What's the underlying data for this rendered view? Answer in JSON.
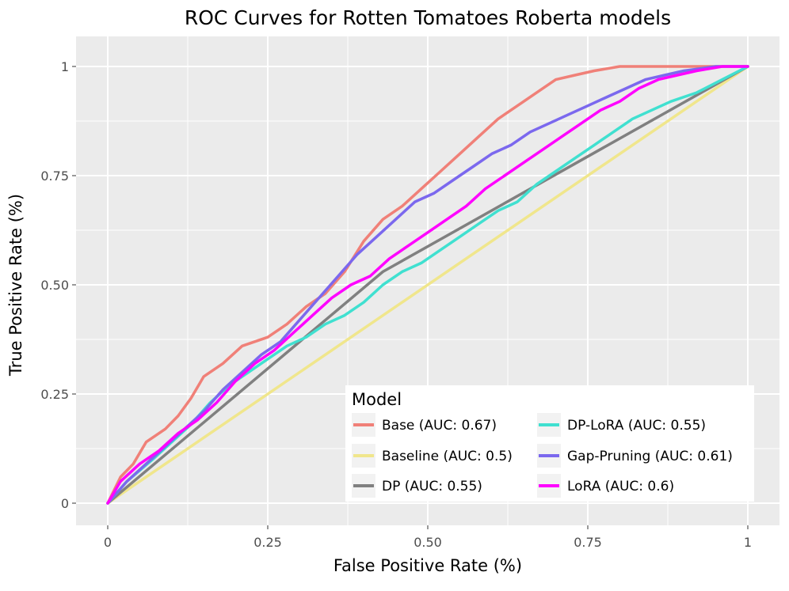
{
  "chart_data": {
    "type": "line",
    "title": "ROC Curves for Rotten Tomatoes Roberta models",
    "xlabel": "False Positive Rate (%)",
    "ylabel": "True Positive Rate (%)",
    "xlim": [
      0,
      1
    ],
    "ylim": [
      0,
      1
    ],
    "x_ticks": [
      "0",
      "0.25",
      "0.50",
      "0.75",
      "1"
    ],
    "y_ticks": [
      "0",
      "0.25",
      "0.50",
      "0.75",
      "1"
    ],
    "grid": true,
    "legend": {
      "title": "Model",
      "placement": "bottom-right"
    },
    "series": [
      {
        "name": "Base (AUC: 0.67)",
        "color": "#f08078",
        "points": [
          [
            0,
            0
          ],
          [
            0.02,
            0.06
          ],
          [
            0.04,
            0.09
          ],
          [
            0.06,
            0.14
          ],
          [
            0.09,
            0.17
          ],
          [
            0.11,
            0.2
          ],
          [
            0.13,
            0.24
          ],
          [
            0.15,
            0.29
          ],
          [
            0.18,
            0.32
          ],
          [
            0.21,
            0.36
          ],
          [
            0.25,
            0.38
          ],
          [
            0.28,
            0.41
          ],
          [
            0.31,
            0.45
          ],
          [
            0.34,
            0.48
          ],
          [
            0.37,
            0.53
          ],
          [
            0.4,
            0.6
          ],
          [
            0.43,
            0.65
          ],
          [
            0.46,
            0.68
          ],
          [
            0.49,
            0.72
          ],
          [
            0.52,
            0.76
          ],
          [
            0.55,
            0.8
          ],
          [
            0.58,
            0.84
          ],
          [
            0.61,
            0.88
          ],
          [
            0.64,
            0.91
          ],
          [
            0.67,
            0.94
          ],
          [
            0.7,
            0.97
          ],
          [
            0.73,
            0.98
          ],
          [
            0.76,
            0.99
          ],
          [
            0.8,
            1.0
          ],
          [
            1.0,
            1.0
          ]
        ]
      },
      {
        "name": "Baseline (AUC: 0.5)",
        "color": "#f0e68c",
        "points": [
          [
            0,
            0
          ],
          [
            1,
            1
          ]
        ]
      },
      {
        "name": "DP (AUC: 0.55)",
        "color": "#808080",
        "points": [
          [
            0,
            0
          ],
          [
            0.43,
            0.53
          ],
          [
            1,
            1
          ]
        ]
      },
      {
        "name": "DP-LoRA (AUC: 0.55)",
        "color": "#40e0d0",
        "points": [
          [
            0,
            0
          ],
          [
            0.03,
            0.05
          ],
          [
            0.07,
            0.1
          ],
          [
            0.1,
            0.14
          ],
          [
            0.13,
            0.18
          ],
          [
            0.16,
            0.23
          ],
          [
            0.19,
            0.27
          ],
          [
            0.22,
            0.3
          ],
          [
            0.25,
            0.33
          ],
          [
            0.28,
            0.36
          ],
          [
            0.31,
            0.38
          ],
          [
            0.34,
            0.41
          ],
          [
            0.37,
            0.43
          ],
          [
            0.4,
            0.46
          ],
          [
            0.43,
            0.5
          ],
          [
            0.46,
            0.53
          ],
          [
            0.49,
            0.55
          ],
          [
            0.52,
            0.58
          ],
          [
            0.55,
            0.61
          ],
          [
            0.58,
            0.64
          ],
          [
            0.61,
            0.67
          ],
          [
            0.64,
            0.69
          ],
          [
            0.67,
            0.73
          ],
          [
            0.7,
            0.76
          ],
          [
            0.73,
            0.79
          ],
          [
            0.76,
            0.82
          ],
          [
            0.79,
            0.85
          ],
          [
            0.82,
            0.88
          ],
          [
            0.85,
            0.9
          ],
          [
            0.88,
            0.92
          ],
          [
            0.92,
            0.94
          ],
          [
            0.96,
            0.97
          ],
          [
            1.0,
            1.0
          ]
        ]
      },
      {
        "name": "Gap-Pruning (AUC: 0.61)",
        "color": "#7b68ee",
        "points": [
          [
            0,
            0
          ],
          [
            0.03,
            0.05
          ],
          [
            0.06,
            0.09
          ],
          [
            0.09,
            0.13
          ],
          [
            0.12,
            0.17
          ],
          [
            0.15,
            0.21
          ],
          [
            0.18,
            0.26
          ],
          [
            0.21,
            0.3
          ],
          [
            0.24,
            0.34
          ],
          [
            0.27,
            0.37
          ],
          [
            0.3,
            0.42
          ],
          [
            0.33,
            0.47
          ],
          [
            0.36,
            0.52
          ],
          [
            0.39,
            0.57
          ],
          [
            0.42,
            0.61
          ],
          [
            0.45,
            0.65
          ],
          [
            0.48,
            0.69
          ],
          [
            0.51,
            0.71
          ],
          [
            0.54,
            0.74
          ],
          [
            0.57,
            0.77
          ],
          [
            0.6,
            0.8
          ],
          [
            0.63,
            0.82
          ],
          [
            0.66,
            0.85
          ],
          [
            0.69,
            0.87
          ],
          [
            0.72,
            0.89
          ],
          [
            0.75,
            0.91
          ],
          [
            0.78,
            0.93
          ],
          [
            0.81,
            0.95
          ],
          [
            0.84,
            0.97
          ],
          [
            0.87,
            0.98
          ],
          [
            0.9,
            0.99
          ],
          [
            0.95,
            1.0
          ],
          [
            1.0,
            1.0
          ]
        ]
      },
      {
        "name": "LoRA (AUC: 0.6)",
        "color": "#ff00ff",
        "points": [
          [
            0,
            0
          ],
          [
            0.02,
            0.05
          ],
          [
            0.05,
            0.09
          ],
          [
            0.08,
            0.12
          ],
          [
            0.11,
            0.16
          ],
          [
            0.14,
            0.19
          ],
          [
            0.17,
            0.23
          ],
          [
            0.2,
            0.28
          ],
          [
            0.23,
            0.32
          ],
          [
            0.26,
            0.35
          ],
          [
            0.29,
            0.39
          ],
          [
            0.32,
            0.43
          ],
          [
            0.35,
            0.47
          ],
          [
            0.38,
            0.5
          ],
          [
            0.41,
            0.52
          ],
          [
            0.44,
            0.56
          ],
          [
            0.47,
            0.59
          ],
          [
            0.5,
            0.62
          ],
          [
            0.53,
            0.65
          ],
          [
            0.56,
            0.68
          ],
          [
            0.59,
            0.72
          ],
          [
            0.62,
            0.75
          ],
          [
            0.65,
            0.78
          ],
          [
            0.68,
            0.81
          ],
          [
            0.71,
            0.84
          ],
          [
            0.74,
            0.87
          ],
          [
            0.77,
            0.9
          ],
          [
            0.8,
            0.92
          ],
          [
            0.83,
            0.95
          ],
          [
            0.86,
            0.97
          ],
          [
            0.89,
            0.98
          ],
          [
            0.92,
            0.99
          ],
          [
            0.96,
            1.0
          ],
          [
            1.0,
            1.0
          ]
        ]
      }
    ]
  }
}
